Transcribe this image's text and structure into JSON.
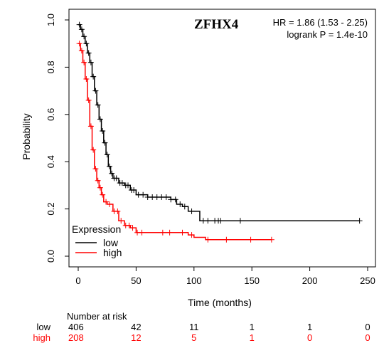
{
  "chart_data": {
    "type": "line",
    "gene_label": "ZFHX4",
    "hr_text": "HR = 1.86 (1.53 - 2.25)",
    "logrank_text": "logrank P = 1.4e-10",
    "xlabel": "Time (months)",
    "ylabel": "Probability",
    "xlim": [
      0,
      250
    ],
    "ylim": [
      0,
      1
    ],
    "x_ticks": [
      0,
      50,
      100,
      150,
      200,
      250
    ],
    "y_ticks": [
      0.0,
      0.2,
      0.4,
      0.6,
      0.8,
      1.0
    ],
    "legend_title": "Expression",
    "legend_position": "bottom-left",
    "series": [
      {
        "name": "low",
        "color": "#000000",
        "x": [
          0,
          2,
          4,
          6,
          8,
          10,
          12,
          14,
          16,
          18,
          20,
          22,
          24,
          26,
          28,
          30,
          35,
          40,
          45,
          50,
          60,
          70,
          80,
          85,
          90,
          95,
          100,
          105,
          110,
          120,
          243
        ],
        "y": [
          0.98,
          0.96,
          0.93,
          0.9,
          0.86,
          0.82,
          0.76,
          0.7,
          0.64,
          0.58,
          0.53,
          0.48,
          0.43,
          0.38,
          0.35,
          0.33,
          0.31,
          0.3,
          0.28,
          0.26,
          0.25,
          0.25,
          0.24,
          0.22,
          0.21,
          0.19,
          0.19,
          0.15,
          0.15,
          0.15,
          0.15
        ],
        "censor_x": [
          1,
          3,
          5,
          7,
          9,
          11,
          13,
          15,
          17,
          19,
          21,
          23,
          25,
          27,
          29,
          31,
          33,
          36,
          38,
          41,
          43,
          46,
          48,
          52,
          56,
          60,
          64,
          68,
          72,
          76,
          80,
          84,
          88,
          92,
          98,
          108,
          112,
          118,
          121,
          123,
          140,
          243
        ]
      },
      {
        "name": "high",
        "color": "#ff0000",
        "x": [
          0,
          2,
          4,
          6,
          8,
          10,
          12,
          14,
          16,
          18,
          20,
          22,
          25,
          30,
          35,
          40,
          45,
          50,
          70,
          90,
          95,
          100,
          110,
          167
        ],
        "y": [
          0.9,
          0.87,
          0.82,
          0.75,
          0.66,
          0.55,
          0.45,
          0.37,
          0.32,
          0.29,
          0.26,
          0.23,
          0.22,
          0.19,
          0.15,
          0.13,
          0.12,
          0.1,
          0.1,
          0.1,
          0.09,
          0.08,
          0.07,
          0.07
        ],
        "censor_x": [
          1,
          3,
          5,
          7,
          9,
          11,
          13,
          15,
          17,
          19,
          21,
          24,
          27,
          31,
          34,
          37,
          41,
          44,
          47,
          51,
          55,
          73,
          79,
          90,
          98,
          112,
          128,
          149,
          167
        ]
      }
    ],
    "risk_table": {
      "title": "Number at risk",
      "times": [
        0,
        50,
        100,
        150,
        200,
        250
      ],
      "rows": [
        {
          "name": "low",
          "color": "#000000",
          "values": [
            "406",
            "42",
            "11",
            "1",
            "1",
            "0"
          ]
        },
        {
          "name": "high",
          "color": "#ff0000",
          "values": [
            "208",
            "12",
            "5",
            "1",
            "0",
            "0"
          ]
        }
      ]
    }
  }
}
